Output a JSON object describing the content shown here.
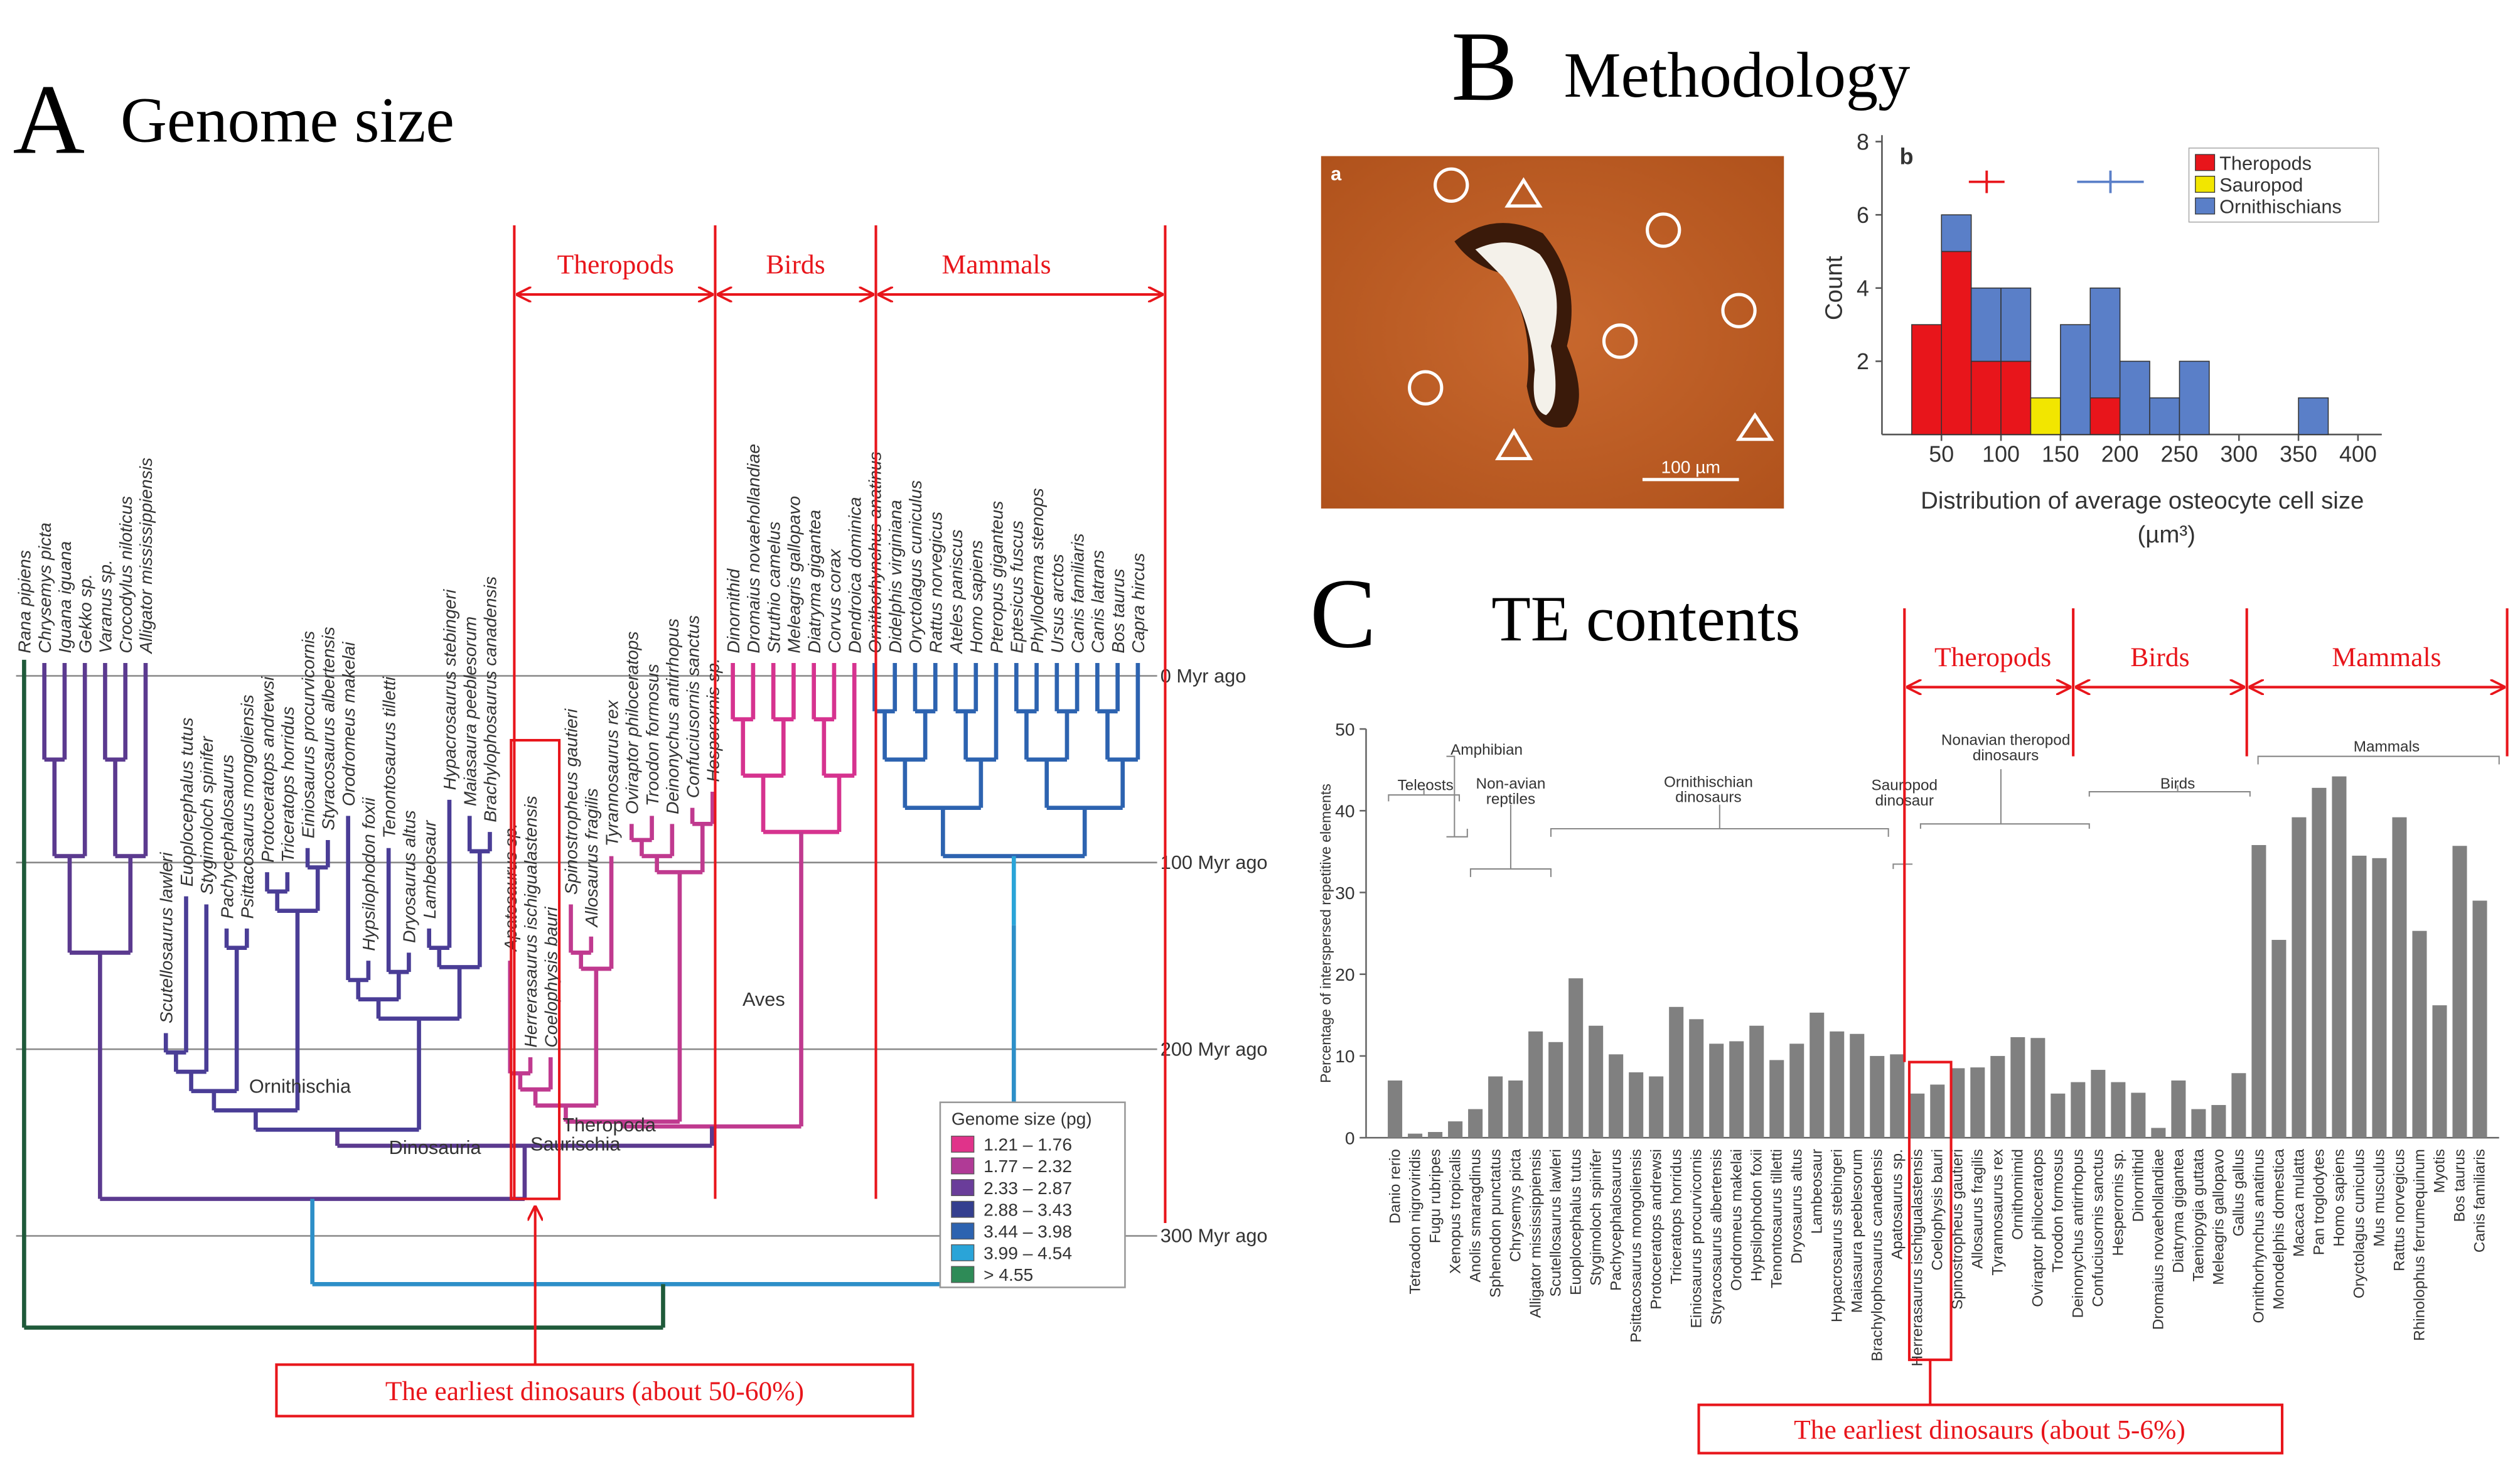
{
  "panel_a": {
    "letter": "A",
    "title": "Genome size",
    "species": [
      "Rana pipiens",
      "Chrysemys picta",
      "Iguana iguana",
      "Gekko sp.",
      "Varanus sp.",
      "Crocodylus niloticus",
      "Alligator mississippiensis",
      "Scutellosaurus lawleri",
      "Euoplocephalus tutus",
      "Stygimoloch spinifer",
      "Pachycephalosaurus",
      "Psittacosaurus mongoliensis",
      "Protoceratops andrewsi",
      "Triceratops horridus",
      "Einiosaurus procurvicornis",
      "Styracosaurus albertensis",
      "Orodromeus makelai",
      "Hypsilophodon foxii",
      "Tenontosaurus tilletti",
      "Dryosaurus altus",
      "Lambeosaur",
      "Hypacrosaurus stebingeri",
      "Maiasaura peeblesorum",
      "Brachylophosaurus canadensis",
      "Apatosaurus sp.",
      "Herrerasaurus ischigualastensis",
      "Coelophysis bauri",
      "Spinostropheus gautieri",
      "Allosaurus fragilis",
      "Tyrannosaurus rex",
      "Oviraptor philoceratops",
      "Troodon formosus",
      "Deinonychus antirrhopus",
      "Confuciusornis sanctus",
      "Hesperornis sp.",
      "Dinornithid",
      "Dromaius novaehollandiae",
      "Struthio camelus",
      "Meleagris gallopavo",
      "Diatryma gigantea",
      "Corvus corax",
      "Dendroica dominica",
      "Ornithorhynchus anatinus",
      "Didelphis virginiana",
      "Oryctolagus cuniculus",
      "Rattus norvegicus",
      "Ateles paniscus",
      "Homo sapiens",
      "Pteropus giganteus",
      "Eptesicus fuscus",
      "Phylloderma stenops",
      "Ursus arctos",
      "Canis familiaris",
      "Canis latrans",
      "Bos taurus",
      "Capra hircus"
    ],
    "time_labels": [
      "0 Myr ago",
      "100 Myr ago",
      "200 Myr ago",
      "300 Myr ago"
    ],
    "clades": {
      "ornithischia": "Ornithischia",
      "dinosauria": "Dinosauria",
      "theropoda": "Theropoda",
      "saurischia": "Saurischia",
      "aves": "Aves"
    },
    "groups": [
      "Theropods",
      "Birds",
      "Mammals"
    ],
    "legend": {
      "title": "Genome size (pg)",
      "entries": [
        {
          "label": "1.21 – 1.76",
          "color": "#e0338a"
        },
        {
          "label": "1.77 – 2.32",
          "color": "#b03a96"
        },
        {
          "label": "2.33 – 2.87",
          "color": "#6a3d9a"
        },
        {
          "label": "2.88 – 3.43",
          "color": "#343f8f"
        },
        {
          "label": "3.44 – 3.98",
          "color": "#2d63b0"
        },
        {
          "label": "3.99 – 4.54",
          "color": "#2aa4d8"
        },
        {
          "label": "> 4.55",
          "color": "#2e8b57"
        }
      ]
    },
    "note": "The earliest dinosaurs (about 50-60%)"
  },
  "panel_b": {
    "letter": "B",
    "title": "Methodology",
    "photo_label": "a",
    "scale_bar": "100 µm"
  },
  "panel_c": {
    "letter": "C",
    "title": "TE contents",
    "groups": [
      "Theropods",
      "Birds",
      "Mammals"
    ],
    "taxa_groups": [
      {
        "lines": [
          "Amphibian"
        ]
      },
      {
        "lines": [
          "Teleosts"
        ]
      },
      {
        "lines": [
          "Non-avian",
          "reptiles"
        ]
      },
      {
        "lines": [
          "Ornithischian",
          "dinosaurs"
        ]
      },
      {
        "lines": [
          "Sauropod",
          "dinosaur"
        ]
      },
      {
        "lines": [
          "Nonavian theropod",
          "dinosaurs"
        ]
      },
      {
        "lines": [
          "Birds"
        ]
      },
      {
        "lines": [
          "Mammals"
        ]
      }
    ],
    "note": "The earliest dinosaurs (about 5-6%)"
  },
  "chart_data": [
    {
      "type": "histogram",
      "panel_label": "b",
      "xlabel": "Distribution of average osteocyte cell size",
      "xlabel_unit": "(µm³)",
      "ylabel": "Count",
      "bins": [
        25,
        50,
        75,
        100,
        125,
        150,
        175,
        200,
        225,
        250,
        275,
        300,
        325,
        350,
        375
      ],
      "series": [
        {
          "name": "Theropods",
          "color": "#e8151b",
          "values": [
            3,
            5,
            2,
            2,
            0,
            0,
            1,
            0,
            0,
            0,
            0,
            0,
            0,
            0
          ],
          "mean": 88,
          "mean_error": 15
        },
        {
          "name": "Sauropod",
          "color": "#f2e600",
          "values": [
            0,
            0,
            0,
            0,
            1,
            0,
            0,
            0,
            0,
            0,
            0,
            0,
            0,
            0
          ]
        },
        {
          "name": "Ornithischians",
          "color": "#5a7fc8",
          "values": [
            0,
            1,
            2,
            2,
            0,
            3,
            3,
            2,
            1,
            2,
            0,
            0,
            0,
            1
          ],
          "mean": 192,
          "mean_error": 28
        }
      ],
      "xlim": [
        0,
        420
      ],
      "xticks": [
        50,
        100,
        150,
        200,
        250,
        300,
        350,
        400
      ],
      "ylim": [
        0,
        8
      ],
      "yticks": [
        2,
        4,
        6,
        8
      ],
      "legend": "top-right"
    },
    {
      "type": "bar",
      "ylabel": "Percentage of interspersed repetitive elements",
      "color": "#808080",
      "categories": [
        "Danio rerio",
        "Tetraodon nigroviridis",
        "Fugu rubripes",
        "Xenopus tropicalis",
        "Anolis smaragdinus",
        "Sphenodon punctatus",
        "Chrysemys picta",
        "Alligator mississippiensis",
        "Scutellosaurus lawleri",
        "Euoplocephalus tutus",
        "Stygimoloch spinifer",
        "Pachycephalosaurus",
        "Psittacosaurus mongoliensis",
        "Protoceratops andrewsi",
        "Triceratops horridus",
        "Einiosaurus procurvicornis",
        "Styracosaurus albertensis",
        "Orodromeus makelai",
        "Hypsilophodon foxii",
        "Tenontosaurus tilletti",
        "Dryosaurus altus",
        "Lambeosaur",
        "Hypacrosaurus stebingeri",
        "Maiasaura peeblesorum",
        "Brachylophosaurus canadensis",
        "Apatosaurus sp.",
        "Herrerasaurus ischigualastensis",
        "Coelophysis bauri",
        "Spinostropheus gautieri",
        "Allosaurus fragilis",
        "Tyrannosaurus rex",
        "Ornithomimid",
        "Oviraptor philoceratops",
        "Troodon formosus",
        "Deinonychus antirrhopus",
        "Confuciusornis sanctus",
        "Hesperornis sp.",
        "Dinornithid",
        "Dromaius novaehollandiae",
        "Diatryma gigantea",
        "Taeniopygia guttata",
        "Meleagris gallopavo",
        "Gallus gallus",
        "Ornithorhynchus anatinus",
        "Monodelphis domestica",
        "Macaca mulatta",
        "Pan troglodytes",
        "Homo sapiens",
        "Oryctolagus cuniculus",
        "Mus musculus",
        "Rattus norvegicus",
        "Rhinolophus ferrumequinum",
        "Myotis",
        "Bos taurus",
        "Canis familiaris"
      ],
      "values": [
        7,
        0.5,
        0.7,
        2,
        3.5,
        7.5,
        7,
        13,
        11.7,
        19.5,
        13.7,
        10.2,
        8,
        7.5,
        16,
        14.5,
        11.5,
        11.8,
        13.7,
        9.5,
        11.5,
        15.3,
        13,
        12.7,
        10,
        10.2,
        5.4,
        6.5,
        8.5,
        8.6,
        10,
        12.3,
        12.2,
        5.4,
        6.8,
        8.3,
        6.8,
        5.5,
        1.2,
        7,
        3.5,
        4,
        7.9,
        35.8,
        24.2,
        39.2,
        42.8,
        44.2,
        34.5,
        34.2,
        39.2,
        25.3,
        16.2,
        35.7,
        29
      ],
      "ylim": [
        0,
        50
      ],
      "yticks": [
        0,
        10,
        20,
        30,
        40,
        50
      ]
    }
  ]
}
